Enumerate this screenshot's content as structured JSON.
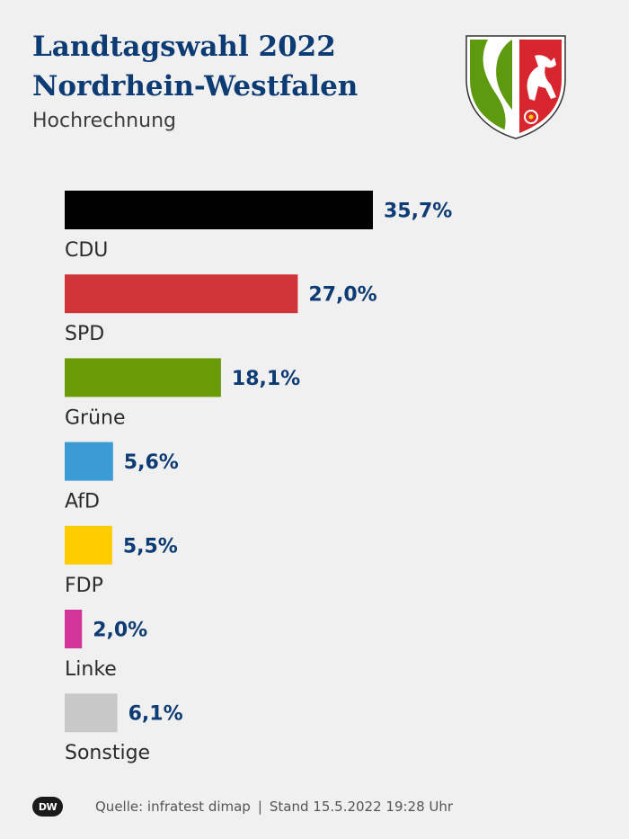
{
  "header": {
    "title_line1": "Landtagswahl 2022",
    "title_line2": "Nordrhein-Westfalen",
    "subtitle": "Hochrechnung"
  },
  "chart_data": {
    "type": "bar",
    "orientation": "horizontal",
    "title": "Landtagswahl 2022 Nordrhein-Westfalen",
    "subtitle": "Hochrechnung",
    "categories": [
      "CDU",
      "SPD",
      "Grüne",
      "AfD",
      "FDP",
      "Linke",
      "Sonstige"
    ],
    "values": [
      35.7,
      27.0,
      18.1,
      5.6,
      5.5,
      2.0,
      6.1
    ],
    "labels": [
      "35,7%",
      "27,0%",
      "18,1%",
      "5,6%",
      "5,5%",
      "2,0%",
      "6,1%"
    ],
    "colors": [
      "#000000",
      "#d13438",
      "#6a9a06",
      "#3a9bd5",
      "#ffcc00",
      "#d2359a",
      "#c8c8c8"
    ],
    "unit": "%",
    "xlim": [
      0,
      40
    ]
  },
  "footer": {
    "logo_text": "DW",
    "source": "Quelle: infratest dimap",
    "separator": "|",
    "stand": "Stand 15.5.2022 19:28 Uhr"
  }
}
